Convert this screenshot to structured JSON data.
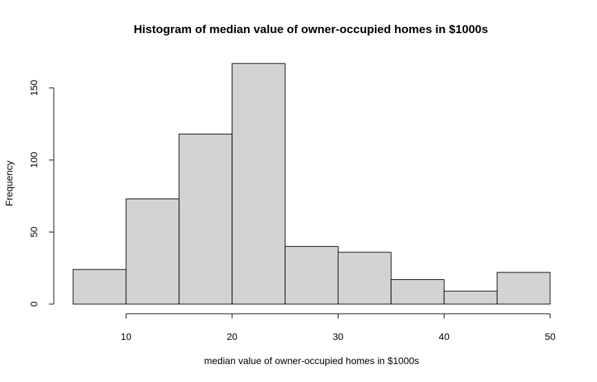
{
  "chart_data": {
    "type": "bar",
    "title": "Histogram of median value of owner-occupied homes in $1000s",
    "xlabel": "median value of owner-occupied homes in $1000s",
    "ylabel": "Frequency",
    "bin_edges": [
      5,
      10,
      15,
      20,
      25,
      30,
      35,
      40,
      45,
      50
    ],
    "values": [
      24,
      73,
      118,
      167,
      40,
      36,
      17,
      9,
      22
    ],
    "x_ticks": [
      10,
      20,
      30,
      40,
      50
    ],
    "y_ticks": [
      0,
      50,
      100,
      150
    ],
    "xlim": [
      5,
      50
    ],
    "ylim": [
      0,
      167
    ],
    "bar_color": "#d3d3d3",
    "edge_color": "#000000",
    "grid": false,
    "legend": "none"
  }
}
